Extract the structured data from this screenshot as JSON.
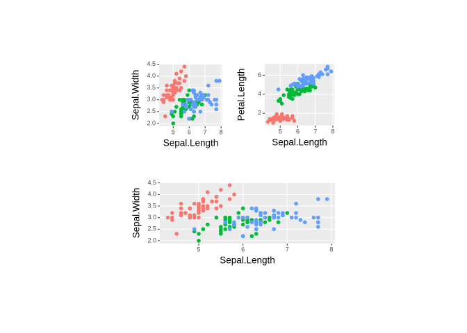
{
  "chart_data": [
    {
      "type": "scatter",
      "x_label": "Sepal.Length",
      "y_label": "Sepal.Width",
      "xlim": [
        4.12,
        8.08
      ],
      "ylim": [
        1.88,
        4.52
      ],
      "xticks": [
        5,
        6,
        7,
        8
      ],
      "yticks": [
        {
          "value": 2,
          "label": "2.0"
        },
        {
          "value": 2.5,
          "label": "2.5"
        },
        {
          "value": 3,
          "label": "3.0"
        },
        {
          "value": 3.5,
          "label": "3.5"
        },
        {
          "value": 4,
          "label": "4.0"
        },
        {
          "value": 4.5,
          "label": "4.5"
        }
      ],
      "grid": true,
      "series": [
        {
          "color": "#F8766D",
          "x": [
            5.1,
            4.9,
            4.7,
            4.6,
            5.0,
            5.4,
            4.6,
            5.0,
            4.4,
            4.9,
            5.4,
            4.8,
            4.8,
            4.3,
            5.8,
            5.7,
            5.4,
            5.1,
            5.7,
            5.1,
            5.4,
            5.1,
            4.6,
            5.1,
            4.8,
            5.0,
            5.0,
            5.2,
            5.2,
            4.7,
            4.8,
            5.4,
            5.2,
            5.5,
            4.9,
            5.0,
            5.5,
            4.9,
            4.4,
            5.1,
            5.0,
            4.5,
            4.4,
            5.0,
            5.1,
            4.8,
            5.1,
            4.6,
            5.3,
            5.0
          ],
          "y": [
            3.5,
            3.0,
            3.2,
            3.1,
            3.6,
            3.9,
            3.4,
            3.4,
            2.9,
            3.1,
            3.7,
            3.4,
            3.0,
            3.0,
            4.0,
            4.4,
            3.9,
            3.5,
            3.8,
            3.8,
            3.4,
            3.7,
            3.6,
            3.3,
            3.4,
            3.0,
            3.4,
            3.5,
            3.4,
            3.2,
            3.1,
            3.4,
            4.1,
            4.2,
            3.1,
            3.2,
            3.5,
            3.6,
            3.0,
            3.4,
            3.5,
            2.3,
            3.2,
            3.5,
            3.8,
            3.0,
            3.8,
            3.2,
            3.7,
            3.3
          ]
        },
        {
          "color": "#00BA38",
          "x": [
            7.0,
            6.4,
            6.9,
            5.5,
            6.5,
            5.7,
            6.3,
            4.9,
            6.6,
            5.2,
            5.0,
            5.9,
            6.0,
            6.1,
            5.6,
            6.7,
            5.6,
            5.8,
            6.2,
            5.6,
            5.9,
            6.1,
            6.3,
            6.1,
            6.4,
            6.6,
            6.8,
            6.7,
            6.0,
            5.7,
            5.5,
            5.5,
            5.8,
            6.0,
            5.4,
            6.0,
            6.7,
            6.3,
            5.6,
            5.5,
            5.5,
            6.1,
            5.8,
            5.0,
            5.6,
            5.7,
            5.7,
            6.2,
            5.1,
            5.7
          ],
          "y": [
            3.2,
            3.2,
            3.1,
            2.3,
            2.8,
            2.8,
            3.3,
            2.4,
            2.9,
            2.7,
            2.0,
            3.0,
            2.2,
            2.9,
            2.9,
            3.1,
            3.0,
            2.7,
            2.2,
            2.5,
            3.2,
            2.8,
            2.5,
            2.8,
            2.9,
            3.0,
            2.8,
            3.0,
            2.9,
            2.6,
            2.4,
            2.4,
            2.7,
            2.7,
            3.0,
            3.4,
            3.1,
            2.3,
            3.0,
            2.5,
            2.6,
            3.0,
            2.6,
            2.3,
            2.7,
            3.0,
            2.9,
            2.9,
            2.5,
            2.8
          ]
        },
        {
          "color": "#619CFF",
          "x": [
            6.3,
            5.8,
            7.1,
            6.3,
            6.5,
            7.6,
            4.9,
            7.3,
            6.7,
            7.2,
            6.5,
            6.4,
            6.8,
            5.7,
            5.8,
            6.4,
            6.5,
            7.7,
            7.7,
            6.0,
            6.9,
            5.6,
            7.7,
            6.3,
            6.7,
            7.2,
            6.2,
            6.1,
            6.4,
            7.2,
            7.4,
            7.9,
            6.4,
            6.3,
            6.1,
            7.7,
            6.3,
            6.4,
            6.0,
            6.9,
            6.7,
            6.9,
            5.8,
            6.8,
            6.7,
            6.7,
            6.3,
            6.5,
            6.2,
            5.9
          ],
          "y": [
            3.3,
            2.7,
            3.0,
            2.9,
            3.0,
            3.0,
            2.5,
            2.9,
            2.5,
            3.6,
            3.2,
            2.7,
            3.0,
            2.5,
            2.8,
            3.2,
            3.0,
            3.8,
            2.6,
            2.2,
            3.2,
            2.8,
            2.8,
            2.7,
            3.3,
            3.2,
            2.8,
            3.0,
            2.8,
            3.0,
            2.8,
            3.8,
            2.8,
            2.8,
            2.6,
            3.0,
            3.4,
            3.1,
            3.0,
            3.1,
            3.1,
            3.1,
            2.7,
            3.2,
            3.3,
            3.0,
            2.5,
            3.0,
            3.4,
            3.0
          ]
        }
      ]
    },
    {
      "type": "scatter",
      "x_label": "Sepal.Length",
      "y_label": "Petal.Length",
      "xlim": [
        4.12,
        8.08
      ],
      "ylim": [
        0.705,
        7.195
      ],
      "xticks": [
        5,
        6,
        7,
        8
      ],
      "yticks": [
        2,
        4,
        6
      ],
      "grid": true,
      "series": [
        {
          "color": "#F8766D",
          "x": [
            5.1,
            4.9,
            4.7,
            4.6,
            5.0,
            5.4,
            4.6,
            5.0,
            4.4,
            4.9,
            5.4,
            4.8,
            4.8,
            4.3,
            5.8,
            5.7,
            5.4,
            5.1,
            5.7,
            5.1,
            5.4,
            5.1,
            4.6,
            5.1,
            4.8,
            5.0,
            5.0,
            5.2,
            5.2,
            4.7,
            4.8,
            5.4,
            5.2,
            5.5,
            4.9,
            5.0,
            5.5,
            4.9,
            4.4,
            5.1,
            5.0,
            4.5,
            4.4,
            5.0,
            5.1,
            4.8,
            5.1,
            4.6,
            5.3,
            5.0
          ],
          "y": [
            1.4,
            1.4,
            1.3,
            1.5,
            1.4,
            1.7,
            1.4,
            1.5,
            1.4,
            1.5,
            1.5,
            1.6,
            1.4,
            1.1,
            1.2,
            1.5,
            1.3,
            1.4,
            1.7,
            1.5,
            1.7,
            1.5,
            1.0,
            1.7,
            1.9,
            1.6,
            1.6,
            1.5,
            1.4,
            1.6,
            1.6,
            1.5,
            1.5,
            1.4,
            1.5,
            1.2,
            1.3,
            1.4,
            1.3,
            1.5,
            1.3,
            1.3,
            1.3,
            1.6,
            1.9,
            1.4,
            1.6,
            1.4,
            1.5,
            1.4
          ]
        },
        {
          "color": "#00BA38",
          "x": [
            7.0,
            6.4,
            6.9,
            5.5,
            6.5,
            5.7,
            6.3,
            4.9,
            6.6,
            5.2,
            5.0,
            5.9,
            6.0,
            6.1,
            5.6,
            6.7,
            5.6,
            5.8,
            6.2,
            5.6,
            5.9,
            6.1,
            6.3,
            6.1,
            6.4,
            6.6,
            6.8,
            6.7,
            6.0,
            5.7,
            5.5,
            5.5,
            5.8,
            6.0,
            5.4,
            6.0,
            6.7,
            6.3,
            5.6,
            5.5,
            5.5,
            6.1,
            5.8,
            5.0,
            5.6,
            5.7,
            5.7,
            6.2,
            5.1,
            5.7
          ],
          "y": [
            4.7,
            4.5,
            4.9,
            4.0,
            4.6,
            4.5,
            4.7,
            3.3,
            4.6,
            3.9,
            3.5,
            4.2,
            4.0,
            4.7,
            3.6,
            4.4,
            4.5,
            4.1,
            4.5,
            3.9,
            4.8,
            4.0,
            4.9,
            4.7,
            4.3,
            4.4,
            4.8,
            5.0,
            4.5,
            3.5,
            3.8,
            3.7,
            3.9,
            5.1,
            4.5,
            4.5,
            4.7,
            4.4,
            4.1,
            4.0,
            4.4,
            4.6,
            4.0,
            3.3,
            4.2,
            4.2,
            4.2,
            4.3,
            3.0,
            4.1
          ]
        },
        {
          "color": "#619CFF",
          "x": [
            6.3,
            5.8,
            7.1,
            6.3,
            6.5,
            7.6,
            4.9,
            7.3,
            6.7,
            7.2,
            6.5,
            6.4,
            6.8,
            5.7,
            5.8,
            6.4,
            6.5,
            7.7,
            7.7,
            6.0,
            6.9,
            5.6,
            7.7,
            6.3,
            6.7,
            7.2,
            6.2,
            6.1,
            6.4,
            7.2,
            7.4,
            7.9,
            6.4,
            6.3,
            6.1,
            7.7,
            6.3,
            6.4,
            6.0,
            6.9,
            6.7,
            6.9,
            5.8,
            6.8,
            6.7,
            6.7,
            6.3,
            6.5,
            6.2,
            5.9
          ],
          "y": [
            6.0,
            5.1,
            5.9,
            5.6,
            5.8,
            6.6,
            4.5,
            6.3,
            5.8,
            6.1,
            5.1,
            5.3,
            5.5,
            5.0,
            5.1,
            5.3,
            5.5,
            6.7,
            6.9,
            5.0,
            5.7,
            4.9,
            6.7,
            4.9,
            5.7,
            6.0,
            4.8,
            4.9,
            5.6,
            5.8,
            6.1,
            6.4,
            5.6,
            5.1,
            5.6,
            6.1,
            5.6,
            5.5,
            4.8,
            5.4,
            5.6,
            5.1,
            5.1,
            5.9,
            5.7,
            5.2,
            5.0,
            5.2,
            5.4,
            5.1
          ]
        }
      ]
    },
    {
      "type": "scatter",
      "x_label": "Sepal.Length",
      "y_label": "Sepal.Width",
      "xlim": [
        4.12,
        8.08
      ],
      "ylim": [
        1.88,
        4.52
      ],
      "xticks": [
        5,
        6,
        7,
        8
      ],
      "yticks": [
        {
          "value": 2,
          "label": "2.0"
        },
        {
          "value": 2.5,
          "label": "2.5"
        },
        {
          "value": 3,
          "label": "3.0"
        },
        {
          "value": 3.5,
          "label": "3.5"
        },
        {
          "value": 4,
          "label": "4.0"
        },
        {
          "value": 4.5,
          "label": "4.5"
        }
      ],
      "grid": true,
      "series": [
        {
          "color": "#F8766D",
          "x": [
            5.1,
            4.9,
            4.7,
            4.6,
            5.0,
            5.4,
            4.6,
            5.0,
            4.4,
            4.9,
            5.4,
            4.8,
            4.8,
            4.3,
            5.8,
            5.7,
            5.4,
            5.1,
            5.7,
            5.1,
            5.4,
            5.1,
            4.6,
            5.1,
            4.8,
            5.0,
            5.0,
            5.2,
            5.2,
            4.7,
            4.8,
            5.4,
            5.2,
            5.5,
            4.9,
            5.0,
            5.5,
            4.9,
            4.4,
            5.1,
            5.0,
            4.5,
            4.4,
            5.0,
            5.1,
            4.8,
            5.1,
            4.6,
            5.3,
            5.0
          ],
          "y": [
            3.5,
            3.0,
            3.2,
            3.1,
            3.6,
            3.9,
            3.4,
            3.4,
            2.9,
            3.1,
            3.7,
            3.4,
            3.0,
            3.0,
            4.0,
            4.4,
            3.9,
            3.5,
            3.8,
            3.8,
            3.4,
            3.7,
            3.6,
            3.3,
            3.4,
            3.0,
            3.4,
            3.5,
            3.4,
            3.2,
            3.1,
            3.4,
            4.1,
            4.2,
            3.1,
            3.2,
            3.5,
            3.6,
            3.0,
            3.4,
            3.5,
            2.3,
            3.2,
            3.5,
            3.8,
            3.0,
            3.8,
            3.2,
            3.7,
            3.3
          ]
        },
        {
          "color": "#00BA38",
          "x": [
            7.0,
            6.4,
            6.9,
            5.5,
            6.5,
            5.7,
            6.3,
            4.9,
            6.6,
            5.2,
            5.0,
            5.9,
            6.0,
            6.1,
            5.6,
            6.7,
            5.6,
            5.8,
            6.2,
            5.6,
            5.9,
            6.1,
            6.3,
            6.1,
            6.4,
            6.6,
            6.8,
            6.7,
            6.0,
            5.7,
            5.5,
            5.5,
            5.8,
            6.0,
            5.4,
            6.0,
            6.7,
            6.3,
            5.6,
            5.5,
            5.5,
            6.1,
            5.8,
            5.0,
            5.6,
            5.7,
            5.7,
            6.2,
            5.1,
            5.7
          ],
          "y": [
            3.2,
            3.2,
            3.1,
            2.3,
            2.8,
            2.8,
            3.3,
            2.4,
            2.9,
            2.7,
            2.0,
            3.0,
            2.2,
            2.9,
            2.9,
            3.1,
            3.0,
            2.7,
            2.2,
            2.5,
            3.2,
            2.8,
            2.5,
            2.8,
            2.9,
            3.0,
            2.8,
            3.0,
            2.9,
            2.6,
            2.4,
            2.4,
            2.7,
            2.7,
            3.0,
            3.4,
            3.1,
            2.3,
            3.0,
            2.5,
            2.6,
            3.0,
            2.6,
            2.3,
            2.7,
            3.0,
            2.9,
            2.9,
            2.5,
            2.8
          ]
        },
        {
          "color": "#619CFF",
          "x": [
            6.3,
            5.8,
            7.1,
            6.3,
            6.5,
            7.6,
            4.9,
            7.3,
            6.7,
            7.2,
            6.5,
            6.4,
            6.8,
            5.7,
            5.8,
            6.4,
            6.5,
            7.7,
            7.7,
            6.0,
            6.9,
            5.6,
            7.7,
            6.3,
            6.7,
            7.2,
            6.2,
            6.1,
            6.4,
            7.2,
            7.4,
            7.9,
            6.4,
            6.3,
            6.1,
            7.7,
            6.3,
            6.4,
            6.0,
            6.9,
            6.7,
            6.9,
            5.8,
            6.8,
            6.7,
            6.7,
            6.3,
            6.5,
            6.2,
            5.9
          ],
          "y": [
            3.3,
            2.7,
            3.0,
            2.9,
            3.0,
            3.0,
            2.5,
            2.9,
            2.5,
            3.6,
            3.2,
            2.7,
            3.0,
            2.5,
            2.8,
            3.2,
            3.0,
            3.8,
            2.6,
            2.2,
            3.2,
            2.8,
            2.8,
            2.7,
            3.3,
            3.2,
            2.8,
            3.0,
            2.8,
            3.0,
            2.8,
            3.8,
            2.8,
            2.8,
            2.6,
            3.0,
            3.4,
            3.1,
            3.0,
            3.1,
            3.1,
            3.1,
            2.7,
            3.2,
            3.3,
            3.0,
            2.5,
            3.0,
            3.4,
            3.0
          ]
        }
      ]
    }
  ]
}
